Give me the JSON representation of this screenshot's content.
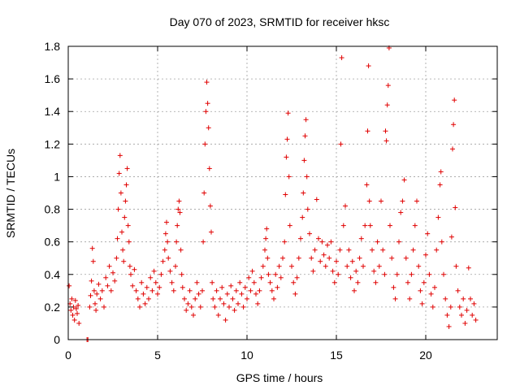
{
  "chart_data": {
    "type": "scatter",
    "title": "Day 070 of 2023, SRMTID for receiver hksc",
    "xlabel": "GPS time / hours",
    "ylabel": "SRMTID / TECUs",
    "xlim": [
      0,
      24
    ],
    "ylim": [
      0,
      1.8
    ],
    "xticks": [
      0,
      5,
      10,
      15,
      20
    ],
    "xtick_labels": [
      "0",
      "5",
      "10",
      "15",
      "20"
    ],
    "yticks": [
      0,
      0.2,
      0.4,
      0.6,
      0.8,
      1.0,
      1.2,
      1.4,
      1.6,
      1.8
    ],
    "ytick_labels": [
      "0",
      "0.2",
      "0.4",
      "0.6",
      "0.8",
      "1",
      "1.2",
      "1.4",
      "1.6",
      "1.8"
    ],
    "grid": true,
    "marker": "+",
    "color": "#e00000",
    "series": [
      {
        "name": "SRMTID",
        "points": [
          [
            0.05,
            0.33
          ],
          [
            0.1,
            0.22
          ],
          [
            0.15,
            0.18
          ],
          [
            0.2,
            0.25
          ],
          [
            0.25,
            0.15
          ],
          [
            0.3,
            0.2
          ],
          [
            0.35,
            0.12
          ],
          [
            0.4,
            0.24
          ],
          [
            0.45,
            0.19
          ],
          [
            0.5,
            0.16
          ],
          [
            0.55,
            0.21
          ],
          [
            0.6,
            0.1
          ],
          [
            1.05,
            0.0
          ],
          [
            1.1,
            0.0
          ],
          [
            1.2,
            0.2
          ],
          [
            1.25,
            0.27
          ],
          [
            1.3,
            0.36
          ],
          [
            1.35,
            0.56
          ],
          [
            1.4,
            0.48
          ],
          [
            1.45,
            0.3
          ],
          [
            1.5,
            0.22
          ],
          [
            1.55,
            0.18
          ],
          [
            1.6,
            0.28
          ],
          [
            1.7,
            0.34
          ],
          [
            1.8,
            0.25
          ],
          [
            1.9,
            0.3
          ],
          [
            2.0,
            0.2
          ],
          [
            2.1,
            0.38
          ],
          [
            2.2,
            0.33
          ],
          [
            2.3,
            0.45
          ],
          [
            2.4,
            0.3
          ],
          [
            2.5,
            0.41
          ],
          [
            2.6,
            0.36
          ],
          [
            2.7,
            0.5
          ],
          [
            2.75,
            0.62
          ],
          [
            2.8,
            0.8
          ],
          [
            2.85,
            1.02
          ],
          [
            2.9,
            1.13
          ],
          [
            2.95,
            0.9
          ],
          [
            3.0,
            0.66
          ],
          [
            3.05,
            0.55
          ],
          [
            3.1,
            0.48
          ],
          [
            3.15,
            0.75
          ],
          [
            3.2,
            0.85
          ],
          [
            3.25,
            0.95
          ],
          [
            3.3,
            1.05
          ],
          [
            3.35,
            0.7
          ],
          [
            3.4,
            0.6
          ],
          [
            3.45,
            0.45
          ],
          [
            3.5,
            0.4
          ],
          [
            3.6,
            0.33
          ],
          [
            3.7,
            0.43
          ],
          [
            3.8,
            0.3
          ],
          [
            3.9,
            0.25
          ],
          [
            4.0,
            0.2
          ],
          [
            4.1,
            0.35
          ],
          [
            4.2,
            0.28
          ],
          [
            4.3,
            0.22
          ],
          [
            4.4,
            0.32
          ],
          [
            4.5,
            0.25
          ],
          [
            4.6,
            0.38
          ],
          [
            4.7,
            0.3
          ],
          [
            4.8,
            0.42
          ],
          [
            4.9,
            0.35
          ],
          [
            5.0,
            0.28
          ],
          [
            5.1,
            0.32
          ],
          [
            5.2,
            0.4
          ],
          [
            5.3,
            0.48
          ],
          [
            5.4,
            0.55
          ],
          [
            5.45,
            0.65
          ],
          [
            5.5,
            0.72
          ],
          [
            5.55,
            0.6
          ],
          [
            5.6,
            0.5
          ],
          [
            5.7,
            0.42
          ],
          [
            5.8,
            0.35
          ],
          [
            5.9,
            0.3
          ],
          [
            6.0,
            0.45
          ],
          [
            6.05,
            0.6
          ],
          [
            6.1,
            0.7
          ],
          [
            6.15,
            0.8
          ],
          [
            6.2,
            0.85
          ],
          [
            6.25,
            0.78
          ],
          [
            6.3,
            0.55
          ],
          [
            6.35,
            0.4
          ],
          [
            6.4,
            0.32
          ],
          [
            6.5,
            0.25
          ],
          [
            6.6,
            0.18
          ],
          [
            6.7,
            0.22
          ],
          [
            6.8,
            0.3
          ],
          [
            6.9,
            0.2
          ],
          [
            7.0,
            0.15
          ],
          [
            7.1,
            0.25
          ],
          [
            7.2,
            0.35
          ],
          [
            7.3,
            0.28
          ],
          [
            7.4,
            0.2
          ],
          [
            7.5,
            0.3
          ],
          [
            7.55,
            0.6
          ],
          [
            7.6,
            0.9
          ],
          [
            7.65,
            1.2
          ],
          [
            7.7,
            1.4
          ],
          [
            7.75,
            1.58
          ],
          [
            7.8,
            1.45
          ],
          [
            7.85,
            1.3
          ],
          [
            7.9,
            1.05
          ],
          [
            7.95,
            0.82
          ],
          [
            8.0,
            0.66
          ],
          [
            8.05,
            0.35
          ],
          [
            8.1,
            0.25
          ],
          [
            8.2,
            0.2
          ],
          [
            8.3,
            0.3
          ],
          [
            8.4,
            0.15
          ],
          [
            8.5,
            0.25
          ],
          [
            8.6,
            0.32
          ],
          [
            8.7,
            0.22
          ],
          [
            8.8,
            0.12
          ],
          [
            8.9,
            0.28
          ],
          [
            9.0,
            0.2
          ],
          [
            9.1,
            0.33
          ],
          [
            9.2,
            0.25
          ],
          [
            9.3,
            0.18
          ],
          [
            9.4,
            0.3
          ],
          [
            9.5,
            0.22
          ],
          [
            9.6,
            0.35
          ],
          [
            9.7,
            0.28
          ],
          [
            9.8,
            0.2
          ],
          [
            9.9,
            0.32
          ],
          [
            10.0,
            0.25
          ],
          [
            10.1,
            0.38
          ],
          [
            10.2,
            0.3
          ],
          [
            10.3,
            0.42
          ],
          [
            10.4,
            0.35
          ],
          [
            10.5,
            0.28
          ],
          [
            10.6,
            0.22
          ],
          [
            10.7,
            0.3
          ],
          [
            10.8,
            0.38
          ],
          [
            10.9,
            0.45
          ],
          [
            11.0,
            0.55
          ],
          [
            11.05,
            0.62
          ],
          [
            11.1,
            0.68
          ],
          [
            11.15,
            0.5
          ],
          [
            11.2,
            0.4
          ],
          [
            11.3,
            0.35
          ],
          [
            11.4,
            0.3
          ],
          [
            11.5,
            0.25
          ],
          [
            11.6,
            0.4
          ],
          [
            11.7,
            0.32
          ],
          [
            11.8,
            0.45
          ],
          [
            11.9,
            0.38
          ],
          [
            12.0,
            0.5
          ],
          [
            12.1,
            0.6
          ],
          [
            12.15,
            0.89
          ],
          [
            12.2,
            1.12
          ],
          [
            12.25,
            1.23
          ],
          [
            12.3,
            1.39
          ],
          [
            12.35,
            1.0
          ],
          [
            12.4,
            0.7
          ],
          [
            12.5,
            0.45
          ],
          [
            12.6,
            0.35
          ],
          [
            12.7,
            0.28
          ],
          [
            12.8,
            0.38
          ],
          [
            12.9,
            0.5
          ],
          [
            13.0,
            0.62
          ],
          [
            13.1,
            0.75
          ],
          [
            13.15,
            0.9
          ],
          [
            13.2,
            1.1
          ],
          [
            13.25,
            1.25
          ],
          [
            13.3,
            1.35
          ],
          [
            13.35,
            1.0
          ],
          [
            13.4,
            0.8
          ],
          [
            13.5,
            0.65
          ],
          [
            13.6,
            0.5
          ],
          [
            13.7,
            0.42
          ],
          [
            13.8,
            0.55
          ],
          [
            13.9,
            0.86
          ],
          [
            14.0,
            0.62
          ],
          [
            14.1,
            0.48
          ],
          [
            14.2,
            0.6
          ],
          [
            14.3,
            0.52
          ],
          [
            14.4,
            0.45
          ],
          [
            14.5,
            0.58
          ],
          [
            14.6,
            0.5
          ],
          [
            14.7,
            0.6
          ],
          [
            14.8,
            0.42
          ],
          [
            14.9,
            0.35
          ],
          [
            15.0,
            0.48
          ],
          [
            15.1,
            0.4
          ],
          [
            15.2,
            0.55
          ],
          [
            15.25,
            1.2
          ],
          [
            15.3,
            1.73
          ],
          [
            15.4,
            0.7
          ],
          [
            15.5,
            0.82
          ],
          [
            15.6,
            0.45
          ],
          [
            15.7,
            0.55
          ],
          [
            15.8,
            0.38
          ],
          [
            15.9,
            0.48
          ],
          [
            16.0,
            0.3
          ],
          [
            16.1,
            0.42
          ],
          [
            16.2,
            0.35
          ],
          [
            16.3,
            0.5
          ],
          [
            16.4,
            0.62
          ],
          [
            16.5,
            0.45
          ],
          [
            16.6,
            0.7
          ],
          [
            16.7,
            0.95
          ],
          [
            16.75,
            1.28
          ],
          [
            16.8,
            1.68
          ],
          [
            16.85,
            0.85
          ],
          [
            16.9,
            0.7
          ],
          [
            17.0,
            0.55
          ],
          [
            17.1,
            0.42
          ],
          [
            17.2,
            0.35
          ],
          [
            17.3,
            0.6
          ],
          [
            17.4,
            0.45
          ],
          [
            17.5,
            0.85
          ],
          [
            17.6,
            0.55
          ],
          [
            17.7,
            0.4
          ],
          [
            17.75,
            1.28
          ],
          [
            17.8,
            1.22
          ],
          [
            17.85,
            1.44
          ],
          [
            17.9,
            1.56
          ],
          [
            17.95,
            1.79
          ],
          [
            18.0,
            0.7
          ],
          [
            18.1,
            0.5
          ],
          [
            18.2,
            0.32
          ],
          [
            18.3,
            0.25
          ],
          [
            18.4,
            0.4
          ],
          [
            18.5,
            0.6
          ],
          [
            18.6,
            0.78
          ],
          [
            18.7,
            0.85
          ],
          [
            18.8,
            0.98
          ],
          [
            18.9,
            0.5
          ],
          [
            19.0,
            0.35
          ],
          [
            19.1,
            0.25
          ],
          [
            19.2,
            0.4
          ],
          [
            19.3,
            0.55
          ],
          [
            19.4,
            0.7
          ],
          [
            19.5,
            0.85
          ],
          [
            19.6,
            0.45
          ],
          [
            19.7,
            0.3
          ],
          [
            19.8,
            0.22
          ],
          [
            19.9,
            0.35
          ],
          [
            20.0,
            0.52
          ],
          [
            20.1,
            0.65
          ],
          [
            20.2,
            0.4
          ],
          [
            20.3,
            0.28
          ],
          [
            20.4,
            0.2
          ],
          [
            20.5,
            0.32
          ],
          [
            20.6,
            0.55
          ],
          [
            20.7,
            0.75
          ],
          [
            20.8,
            0.95
          ],
          [
            20.85,
            1.03
          ],
          [
            20.9,
            0.6
          ],
          [
            21.0,
            0.4
          ],
          [
            21.1,
            0.25
          ],
          [
            21.2,
            0.15
          ],
          [
            21.3,
            0.08
          ],
          [
            21.4,
            0.2
          ],
          [
            21.45,
            0.63
          ],
          [
            21.5,
            1.17
          ],
          [
            21.55,
            1.32
          ],
          [
            21.6,
            1.47
          ],
          [
            21.65,
            0.81
          ],
          [
            21.7,
            0.45
          ],
          [
            21.8,
            0.3
          ],
          [
            21.9,
            0.2
          ],
          [
            22.0,
            0.15
          ],
          [
            22.1,
            0.25
          ],
          [
            22.2,
            0.1
          ],
          [
            22.3,
            0.18
          ],
          [
            22.4,
            0.44
          ],
          [
            22.5,
            0.25
          ],
          [
            22.6,
            0.15
          ],
          [
            22.7,
            0.22
          ],
          [
            22.8,
            0.12
          ]
        ]
      }
    ]
  }
}
